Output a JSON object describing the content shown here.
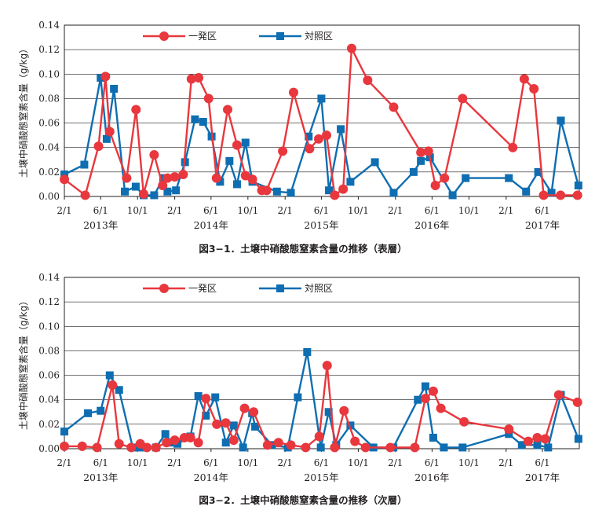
{
  "chart_data": [
    {
      "type": "line",
      "caption": "図3−1．土壌中硝酸態窒素含量の推移（表層）",
      "ylabel": "土壌中硝酸態窒素含量（g/kg）",
      "ylim": [
        0,
        0.14
      ],
      "yticks": [
        "0.00",
        "0.02",
        "0.04",
        "0.06",
        "0.08",
        "0.10",
        "0.12",
        "0.14"
      ],
      "xlim": [
        "2013-02-01",
        "2017-10-01"
      ],
      "xtick_labels": [
        "2/1",
        "6/1",
        "10/1",
        "2/1",
        "6/1",
        "10/1",
        "2/1",
        "6/1",
        "10/1",
        "2/1",
        "6/1",
        "10/1",
        "2/1",
        "6/1"
      ],
      "year_labels": [
        "2013年",
        "2014年",
        "2015年",
        "2016年",
        "2017年"
      ],
      "grid": "horizontal",
      "legend": "top-center",
      "series": [
        {
          "name": "一発区",
          "color": "#e8373d",
          "marker": "circle",
          "x": [
            "2013-02-01",
            "2013-04-11",
            "2013-05-25",
            "2013-06-17",
            "2013-07-01",
            "2013-08-26",
            "2013-09-26",
            "2013-10-21",
            "2013-11-25",
            "2013-12-23",
            "2014-01-08",
            "2014-02-01",
            "2014-03-01",
            "2014-03-28",
            "2014-04-21",
            "2014-05-24",
            "2014-06-19",
            "2014-07-26",
            "2014-08-26",
            "2014-09-23",
            "2014-10-16",
            "2014-11-16",
            "2014-12-02",
            "2015-01-24",
            "2015-03-01",
            "2015-04-23",
            "2015-05-23",
            "2015-06-18",
            "2015-07-15",
            "2015-08-12",
            "2015-09-09",
            "2015-11-01",
            "2016-01-26",
            "2016-04-25",
            "2016-05-20",
            "2016-06-12",
            "2016-07-12",
            "2016-09-10",
            "2017-02-23",
            "2017-04-02",
            "2017-05-04",
            "2017-06-05",
            "2017-07-31",
            "2017-09-25"
          ],
          "y": [
            0.014,
            0.001,
            0.041,
            0.098,
            0.053,
            0.015,
            0.071,
            0.002,
            0.034,
            0.009,
            0.015,
            0.016,
            0.018,
            0.096,
            0.097,
            0.08,
            0.015,
            0.071,
            0.042,
            0.017,
            0.014,
            0.005,
            0.005,
            0.037,
            0.085,
            0.039,
            0.047,
            0.05,
            0.001,
            0.006,
            0.121,
            0.095,
            0.073,
            0.036,
            0.037,
            0.009,
            0.015,
            0.08,
            0.04,
            0.096,
            0.088,
            0.001,
            0.001,
            0.001
          ]
        },
        {
          "name": "対照区",
          "color": "#0e6eb1",
          "marker": "square",
          "x": [
            "2013-02-01",
            "2013-04-08",
            "2013-06-01",
            "2013-06-21",
            "2013-07-15",
            "2013-08-20",
            "2013-09-25",
            "2013-10-21",
            "2013-11-25",
            "2013-12-25",
            "2014-01-08",
            "2014-02-05",
            "2014-03-07",
            "2014-04-09",
            "2014-05-06",
            "2014-06-03",
            "2014-07-01",
            "2014-08-01",
            "2014-08-26",
            "2014-09-23",
            "2014-10-16",
            "2015-01-05",
            "2015-02-20",
            "2015-04-20",
            "2015-06-01",
            "2015-06-26",
            "2015-08-04",
            "2015-09-05",
            "2015-11-25",
            "2016-01-26",
            "2016-04-01",
            "2016-04-25",
            "2016-05-25",
            "2016-08-08",
            "2016-09-20",
            "2017-02-10",
            "2017-04-08",
            "2017-05-18",
            "2017-07-01",
            "2017-08-01",
            "2017-09-28"
          ],
          "y": [
            0.018,
            0.026,
            0.097,
            0.047,
            0.088,
            0.004,
            0.008,
            0.001,
            0.001,
            0.015,
            0.004,
            0.005,
            0.028,
            0.063,
            0.061,
            0.049,
            0.012,
            0.029,
            0.01,
            0.044,
            0.012,
            0.004,
            0.003,
            0.049,
            0.08,
            0.005,
            0.055,
            0.012,
            0.028,
            0.003,
            0.02,
            0.029,
            0.032,
            0.001,
            0.015,
            0.015,
            0.004,
            0.02,
            0.003,
            0.062,
            0.009
          ]
        }
      ]
    },
    {
      "type": "line",
      "caption": "図3−2．土壌中硝酸態窒素含量の推移（次層）",
      "ylabel": "土壌中硝酸態窒素含量（g/kg）",
      "ylim": [
        0,
        0.14
      ],
      "yticks": [
        "0.00",
        "0.02",
        "0.04",
        "0.06",
        "0.08",
        "0.10",
        "0.12",
        "0.14"
      ],
      "xlim": [
        "2013-02-01",
        "2017-10-01"
      ],
      "xtick_labels": [
        "2/1",
        "6/1",
        "10/1",
        "2/1",
        "6/1",
        "10/1",
        "2/1",
        "6/1",
        "10/1",
        "2/1",
        "6/1",
        "10/1",
        "2/1",
        "6/1"
      ],
      "year_labels": [
        "2013年",
        "2014年",
        "2015年",
        "2016年",
        "2017年"
      ],
      "grid": "horizontal",
      "legend": "top-center",
      "series": [
        {
          "name": "一発区",
          "color": "#e8373d",
          "marker": "circle",
          "x": [
            "2013-02-01",
            "2013-04-01",
            "2013-05-20",
            "2013-07-10",
            "2013-08-01",
            "2013-09-10",
            "2013-10-10",
            "2013-11-01",
            "2013-12-01",
            "2014-01-05",
            "2014-02-01",
            "2014-03-05",
            "2014-03-25",
            "2014-04-20",
            "2014-05-15",
            "2014-06-20",
            "2014-07-20",
            "2014-08-15",
            "2014-09-20",
            "2014-10-20",
            "2014-12-05",
            "2015-01-10",
            "2015-02-20",
            "2015-04-10",
            "2015-05-25",
            "2015-06-20",
            "2015-07-15",
            "2015-08-15",
            "2015-09-20",
            "2015-10-25",
            "2016-01-15",
            "2016-04-05",
            "2016-05-10",
            "2016-06-05",
            "2016-06-30",
            "2016-09-15",
            "2017-02-10",
            "2017-04-15",
            "2017-05-15",
            "2017-06-10",
            "2017-07-25",
            "2017-09-25"
          ],
          "y": [
            0.002,
            0.002,
            0.001,
            0.052,
            0.004,
            0.001,
            0.004,
            0.001,
            0.001,
            0.005,
            0.007,
            0.009,
            0.009,
            0.005,
            0.041,
            0.02,
            0.021,
            0.007,
            0.033,
            0.03,
            0.003,
            0.005,
            0.003,
            0.001,
            0.01,
            0.068,
            0.001,
            0.031,
            0.006,
            0.001,
            0.001,
            0.001,
            0.041,
            0.047,
            0.033,
            0.022,
            0.016,
            0.006,
            0.009,
            0.008,
            0.044,
            0.038
          ]
        },
        {
          "name": "対照区",
          "color": "#0e6eb1",
          "marker": "square",
          "x": [
            "2013-02-01",
            "2013-04-20",
            "2013-06-01",
            "2013-07-01",
            "2013-08-01",
            "2013-09-15",
            "2013-10-05",
            "2013-10-26",
            "2013-12-01",
            "2014-01-01",
            "2014-01-21",
            "2014-02-10",
            "2014-03-25",
            "2014-04-20",
            "2014-05-15",
            "2014-06-15",
            "2014-07-20",
            "2014-08-15",
            "2014-09-15",
            "2014-10-15",
            "2014-10-25",
            "2014-12-20",
            "2015-02-10",
            "2015-03-15",
            "2015-04-15",
            "2015-05-30",
            "2015-06-25",
            "2015-07-20",
            "2015-09-05",
            "2015-11-20",
            "2016-01-25",
            "2016-04-15",
            "2016-05-10",
            "2016-06-05",
            "2016-07-10",
            "2016-09-10",
            "2017-02-10",
            "2017-03-25",
            "2017-05-15",
            "2017-06-20",
            "2017-08-01",
            "2017-09-28"
          ],
          "y": [
            0.014,
            0.029,
            0.031,
            0.06,
            0.048,
            0.001,
            0.001,
            0.001,
            0.001,
            0.012,
            0.005,
            0.004,
            0.01,
            0.043,
            0.027,
            0.042,
            0.005,
            0.019,
            0.001,
            0.029,
            0.018,
            0.003,
            0.001,
            0.042,
            0.079,
            0.001,
            0.03,
            0.003,
            0.019,
            0.001,
            0.001,
            0.04,
            0.051,
            0.009,
            0.001,
            0.001,
            0.012,
            0.003,
            0.003,
            0.001,
            0.044,
            0.008
          ]
        }
      ]
    }
  ]
}
